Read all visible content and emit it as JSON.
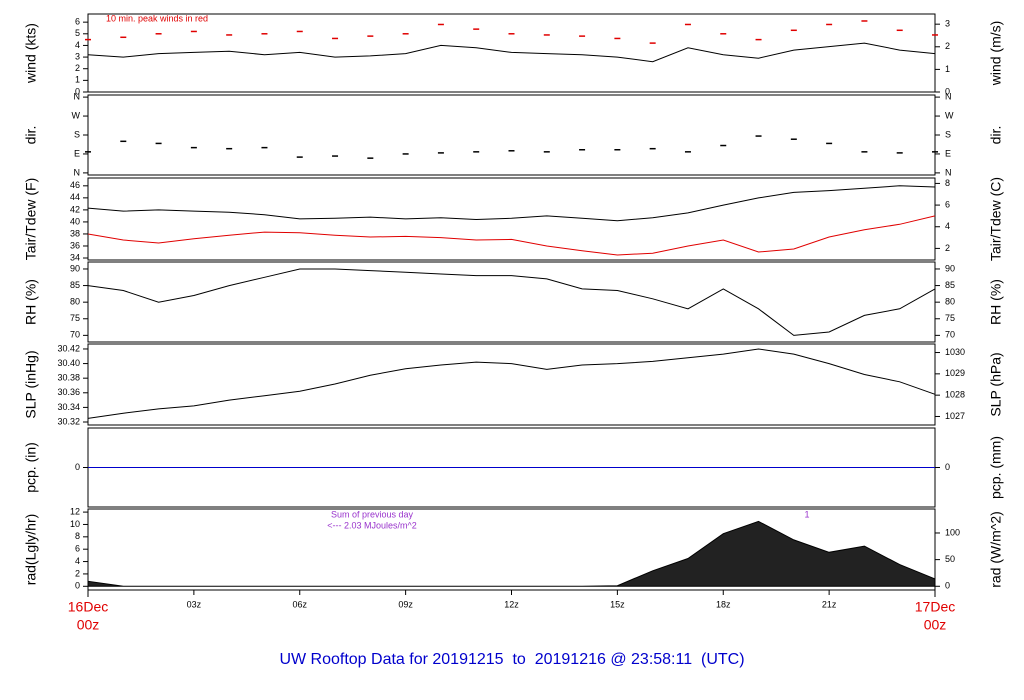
{
  "chart_data": [
    {
      "type": "line",
      "ylabel": "wind (kts)",
      "y2label": "wind (m/s)",
      "annotations": [
        "10 min. peak winds in red"
      ],
      "ylim": [
        0,
        6.7
      ],
      "yticks": [
        0,
        1,
        2,
        3,
        4,
        5,
        6
      ],
      "y2lim": [
        0,
        3.45
      ],
      "y2ticks": [
        0,
        1,
        2,
        3
      ],
      "x": [
        0,
        1,
        2,
        3,
        4,
        5,
        6,
        7,
        8,
        9,
        10,
        11,
        12,
        13,
        14,
        15,
        16,
        17,
        18,
        19,
        20,
        21,
        22,
        23,
        24
      ],
      "series": [
        {
          "name": "wind",
          "style": "line",
          "color": "#000000",
          "values": [
            3.2,
            3.0,
            3.3,
            3.4,
            3.5,
            3.2,
            3.4,
            3.0,
            3.1,
            3.3,
            4.0,
            3.8,
            3.4,
            3.3,
            3.2,
            3.0,
            2.6,
            3.8,
            3.2,
            2.9,
            3.6,
            3.9,
            4.2,
            3.6,
            3.3
          ]
        },
        {
          "name": "peak",
          "style": "dash",
          "color": "#e00000",
          "values": [
            4.5,
            4.7,
            5.0,
            5.2,
            4.9,
            5.0,
            5.2,
            4.6,
            4.8,
            5.0,
            5.8,
            5.4,
            5.0,
            4.9,
            4.8,
            4.6,
            4.2,
            5.8,
            5.0,
            4.5,
            5.3,
            5.8,
            6.1,
            5.3,
            4.9
          ]
        }
      ]
    },
    {
      "type": "line",
      "ylabel": "dir.",
      "y2label": "dir.",
      "ylim": [
        -10,
        370
      ],
      "yticks": [
        {
          "value": 0,
          "label": "N"
        },
        {
          "value": 90,
          "label": "E"
        },
        {
          "value": 180,
          "label": "S"
        },
        {
          "value": 270,
          "label": "W"
        },
        {
          "value": 360,
          "label": "N"
        }
      ],
      "y2lim": [
        -10,
        370
      ],
      "y2ticks": [
        {
          "value": 0,
          "label": "N"
        },
        {
          "value": 90,
          "label": "E"
        },
        {
          "value": 180,
          "label": "S"
        },
        {
          "value": 270,
          "label": "W"
        },
        {
          "value": 360,
          "label": "N"
        }
      ],
      "x": [
        0,
        1,
        2,
        3,
        4,
        5,
        6,
        7,
        8,
        9,
        10,
        11,
        12,
        13,
        14,
        15,
        16,
        17,
        18,
        19,
        20,
        21,
        22,
        23,
        24
      ],
      "series": [
        {
          "name": "dir",
          "style": "dash",
          "color": "#000000",
          "values": [
            100,
            150,
            140,
            120,
            115,
            120,
            75,
            80,
            70,
            90,
            95,
            100,
            105,
            100,
            110,
            110,
            115,
            100,
            130,
            175,
            160,
            140,
            100,
            95,
            100
          ]
        }
      ]
    },
    {
      "type": "line",
      "ylabel": "Tair/Tdew (F)",
      "y2label": "Tair/Tdew (C)",
      "ylim": [
        33.67,
        47.3
      ],
      "yticks": [
        34,
        36,
        38,
        40,
        42,
        44,
        46
      ],
      "y2lim": [
        0.93,
        8.5
      ],
      "y2ticks": [
        2,
        4,
        6,
        8
      ],
      "x": [
        0,
        1,
        2,
        3,
        4,
        5,
        6,
        7,
        8,
        9,
        10,
        11,
        12,
        13,
        14,
        15,
        16,
        17,
        18,
        19,
        20,
        21,
        22,
        23,
        24
      ],
      "series": [
        {
          "name": "Tair",
          "style": "line",
          "color": "#000000",
          "values": [
            42.3,
            41.8,
            42.0,
            41.8,
            41.6,
            41.2,
            40.5,
            40.6,
            40.8,
            40.5,
            40.7,
            40.4,
            40.6,
            41.0,
            40.6,
            40.2,
            40.7,
            41.5,
            42.8,
            44.0,
            44.9,
            45.2,
            45.6,
            46.0,
            45.8
          ]
        },
        {
          "name": "Tdew",
          "style": "line",
          "color": "#e00000",
          "values": [
            38.0,
            37.0,
            36.5,
            37.2,
            37.8,
            38.3,
            38.2,
            37.8,
            37.5,
            37.6,
            37.4,
            37.0,
            37.1,
            36.0,
            35.2,
            34.5,
            34.8,
            36.0,
            37.0,
            35.0,
            35.5,
            37.5,
            38.7,
            39.6,
            41.0
          ]
        }
      ]
    },
    {
      "type": "line",
      "ylabel": "RH (%)",
      "y2label": "RH (%)",
      "ylim": [
        68.0,
        92.1
      ],
      "yticks": [
        70,
        75,
        80,
        85,
        90
      ],
      "y2lim": [
        68.0,
        92.1
      ],
      "y2ticks": [
        70,
        75,
        80,
        85,
        90
      ],
      "x": [
        0,
        1,
        2,
        3,
        4,
        5,
        6,
        7,
        8,
        9,
        10,
        11,
        12,
        13,
        14,
        15,
        16,
        17,
        18,
        19,
        20,
        21,
        22,
        23,
        24
      ],
      "series": [
        {
          "name": "RH",
          "style": "line",
          "color": "#000000",
          "values": [
            85,
            83.5,
            80,
            82,
            85,
            87.5,
            90,
            90,
            89.5,
            89,
            88.5,
            88,
            88,
            87,
            84,
            83.5,
            81,
            78,
            84,
            78,
            70,
            71,
            76,
            78,
            84
          ]
        }
      ]
    },
    {
      "type": "line",
      "ylabel": "SLP (inHg)",
      "y2label": "SLP (hPa)",
      "ylim": [
        30.3159,
        30.4268
      ],
      "yticks": [
        {
          "value": 30.32,
          "label": "30.32"
        },
        {
          "value": 30.34,
          "label": "30.34"
        },
        {
          "value": 30.36,
          "label": "30.36"
        },
        {
          "value": 30.38,
          "label": "30.38"
        },
        {
          "value": 30.4,
          "label": "30.40"
        },
        {
          "value": 30.42,
          "label": "30.42"
        }
      ],
      "y2lim": [
        1026.6,
        1030.4
      ],
      "y2ticks": [
        1027,
        1028,
        1029,
        1030
      ],
      "x": [
        0,
        1,
        2,
        3,
        4,
        5,
        6,
        7,
        8,
        9,
        10,
        11,
        12,
        13,
        14,
        15,
        16,
        17,
        18,
        19,
        20,
        21,
        22,
        23,
        24
      ],
      "series": [
        {
          "name": "SLP",
          "style": "line",
          "color": "#000000",
          "values": [
            30.325,
            30.332,
            30.338,
            30.342,
            30.35,
            30.356,
            30.362,
            30.372,
            30.384,
            30.393,
            30.398,
            30.402,
            30.4,
            30.392,
            30.398,
            30.4,
            30.403,
            30.408,
            30.413,
            30.42,
            30.413,
            30.4,
            30.385,
            30.375,
            30.358
          ]
        }
      ]
    },
    {
      "type": "line",
      "ylabel": "pcp. (in)",
      "y2label": "pcp. (mm)",
      "ylim": [
        -1,
        1
      ],
      "yticks": [
        0
      ],
      "y2lim": [
        -1,
        1
      ],
      "y2ticks": [
        0
      ],
      "x": [
        0,
        24
      ],
      "series": [
        {
          "name": "pcp",
          "style": "line",
          "color": "#0000cc",
          "values": [
            0,
            0
          ]
        }
      ]
    },
    {
      "type": "area",
      "ylabel": "rad(Lgly/hr)",
      "y2label": "rad (W/m^2)",
      "annotations": [
        "Sum of previous day",
        "<--- 2.03 MJoules/m^2",
        "1"
      ],
      "ylim": [
        -0.6,
        12.5
      ],
      "yticks": [
        0,
        2,
        4,
        6,
        8,
        10,
        12
      ],
      "y2lim": [
        -7,
        145
      ],
      "y2ticks": [
        0,
        50,
        100
      ],
      "x": [
        0,
        1,
        2,
        3,
        4,
        5,
        6,
        7,
        8,
        9,
        10,
        11,
        12,
        13,
        14,
        15,
        16,
        17,
        18,
        19,
        20,
        21,
        22,
        23,
        24
      ],
      "series": [
        {
          "name": "rad",
          "style": "area",
          "color": "#000000",
          "values": [
            0.8,
            0,
            0,
            0,
            0,
            0,
            0,
            0,
            0,
            0,
            0,
            0,
            0,
            0,
            0,
            0.1,
            2.5,
            4.5,
            8.5,
            10.5,
            7.5,
            5.5,
            6.5,
            3.5,
            1.2
          ]
        }
      ]
    },
    {
      "type": "axis",
      "xlim": [
        0,
        24
      ],
      "xticks": [
        {
          "value": 3,
          "label": "03z"
        },
        {
          "value": 6,
          "label": "06z"
        },
        {
          "value": 9,
          "label": "09z"
        },
        {
          "value": 12,
          "label": "12z"
        },
        {
          "value": 15,
          "label": "15z"
        },
        {
          "value": 18,
          "label": "18z"
        },
        {
          "value": 21,
          "label": "21z"
        }
      ],
      "edges": [
        {
          "value": 0,
          "date": "16Dec",
          "time": "00z"
        },
        {
          "value": 24,
          "date": "17Dec",
          "time": "00z"
        }
      ],
      "title": "UW Rooftop Data for 20191215  to  20191216 @ 23:58:11  (UTC)"
    }
  ]
}
